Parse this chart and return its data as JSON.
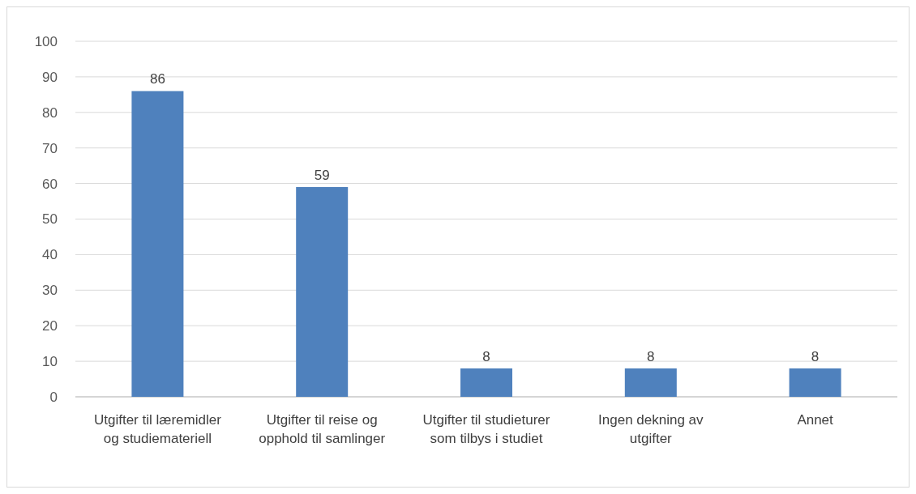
{
  "chart_data": {
    "type": "bar",
    "categories": [
      "Utgifter til læremidler og studiemateriell",
      "Utgifter til reise og opphold til samlinger",
      "Utgifter til studieturer som tilbys i studiet",
      "Ingen dekning av utgifter",
      "Annet"
    ],
    "values": [
      86,
      59,
      8,
      8,
      8
    ],
    "color": "#4f81bd",
    "ylim": [
      0,
      100
    ],
    "yticks": [
      0,
      10,
      20,
      30,
      40,
      50,
      60,
      70,
      80,
      90,
      100
    ],
    "grid": "y",
    "data_labels": true
  }
}
